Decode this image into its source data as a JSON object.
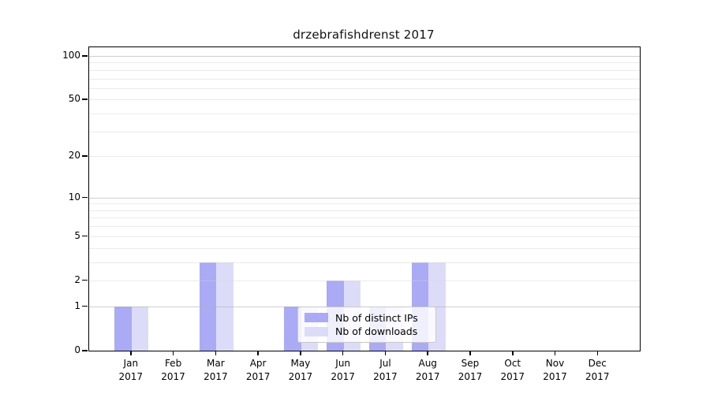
{
  "chart_data": {
    "type": "bar",
    "title": "drzebrafishdrenst 2017",
    "categories": [
      {
        "month": "Jan",
        "year": "2017"
      },
      {
        "month": "Feb",
        "year": "2017"
      },
      {
        "month": "Mar",
        "year": "2017"
      },
      {
        "month": "Apr",
        "year": "2017"
      },
      {
        "month": "May",
        "year": "2017"
      },
      {
        "month": "Jun",
        "year": "2017"
      },
      {
        "month": "Jul",
        "year": "2017"
      },
      {
        "month": "Aug",
        "year": "2017"
      },
      {
        "month": "Sep",
        "year": "2017"
      },
      {
        "month": "Oct",
        "year": "2017"
      },
      {
        "month": "Nov",
        "year": "2017"
      },
      {
        "month": "Dec",
        "year": "2017"
      }
    ],
    "series": [
      {
        "name": "Nb of distinct IPs",
        "color": "#aaaaf5",
        "values": [
          1,
          0,
          3,
          0,
          1,
          2,
          1,
          3,
          0,
          0,
          0,
          0
        ]
      },
      {
        "name": "Nb of downloads",
        "color": "#dcdcf9",
        "values": [
          1,
          0,
          3,
          0,
          1,
          2,
          1,
          3,
          0,
          0,
          0,
          0
        ]
      }
    ],
    "y_ticks": [
      0,
      1,
      2,
      5,
      10,
      20,
      50,
      100
    ],
    "y_minor_gridlines": [
      2,
      3,
      4,
      5,
      6,
      7,
      8,
      9,
      20,
      30,
      40,
      50,
      60,
      70,
      80,
      90
    ],
    "y_major_gridlines": [
      1,
      10,
      100
    ],
    "y_scale": "log10(1+v)",
    "ylim": [
      0,
      100
    ],
    "xlabel": "",
    "ylabel": "",
    "grid": "horizontal",
    "legend_position": "inside-bottom-center",
    "colors": {
      "bar_distinct_ips": "#aaaaf5",
      "bar_downloads": "#dcdcf9",
      "major_grid": "#cccccc",
      "minor_grid": "#e9e9e9",
      "axis": "#000000",
      "text": "#000000"
    }
  }
}
